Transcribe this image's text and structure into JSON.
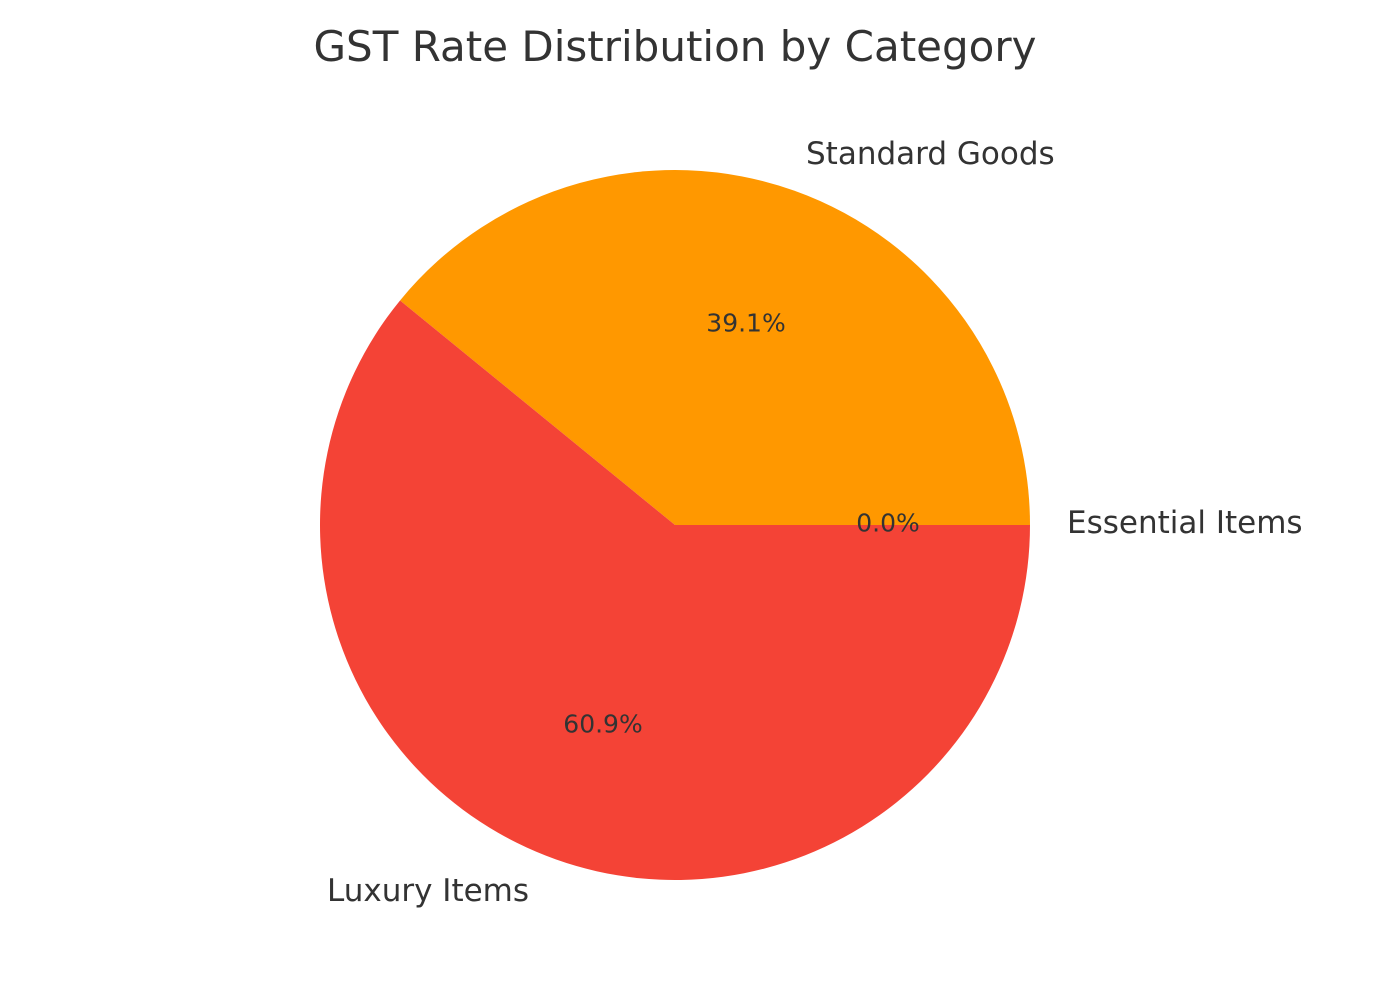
{
  "chart_data": {
    "type": "pie",
    "title": "GST Rate Distribution by Category",
    "categories": [
      "Essential Items",
      "Standard Goods",
      "Luxury Items"
    ],
    "values": [
      0.0,
      39.1,
      60.9
    ],
    "value_labels": [
      "0.0%",
      "39.1%",
      "60.9%"
    ],
    "colors": [
      "#4CAF50",
      "#FF9800",
      "#F44336"
    ],
    "start_angle": 0,
    "legend": "none"
  }
}
